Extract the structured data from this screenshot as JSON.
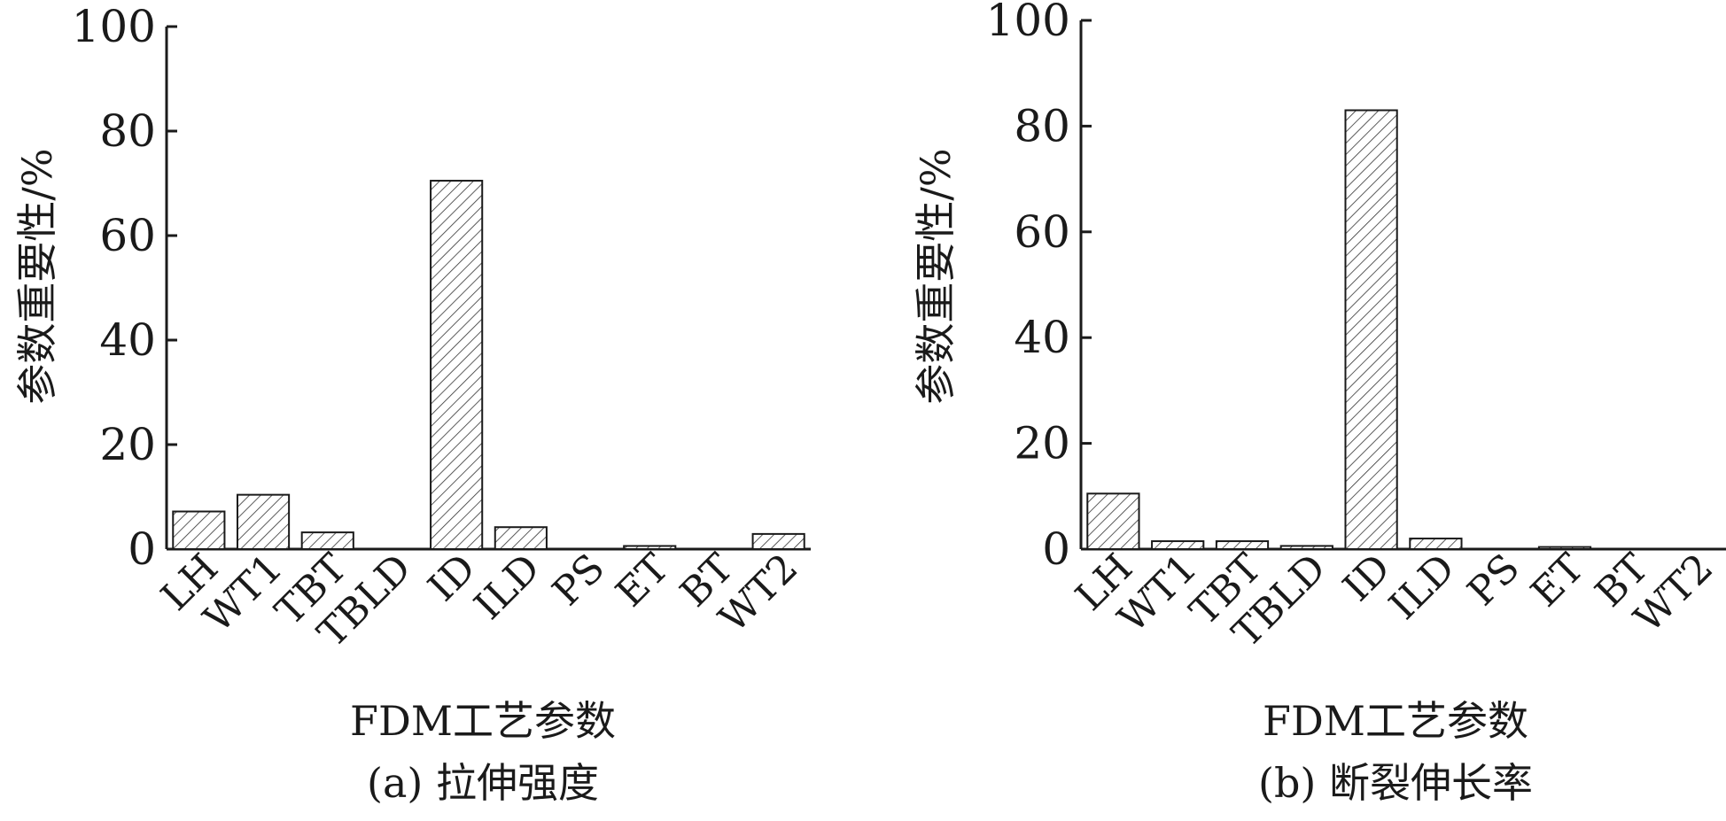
{
  "chart_data": [
    {
      "type": "bar",
      "categories": [
        "LH",
        "WT1",
        "TBT",
        "TBLD",
        "ID",
        "ILD",
        "PS",
        "ET",
        "BT",
        "WT2"
      ],
      "values": [
        7.2,
        10.4,
        3.2,
        0,
        70.5,
        4.2,
        0,
        0.6,
        0,
        2.9
      ],
      "ylabel": "参数重要性/%",
      "xlabel": "FDM工艺参数",
      "caption": "(a) 拉伸强度",
      "ylim": [
        0,
        100
      ],
      "yticks": [
        0,
        20,
        40,
        60,
        80,
        100
      ],
      "fill_pattern": "diagonal-hatch",
      "grid": false,
      "legend": "none"
    },
    {
      "type": "bar",
      "categories": [
        "LH",
        "WT1",
        "TBT",
        "TBLD",
        "ID",
        "ILD",
        "PS",
        "ET",
        "BT",
        "WT2"
      ],
      "values": [
        10.5,
        1.5,
        1.5,
        0.6,
        83.0,
        2.0,
        0,
        0.4,
        0,
        0
      ],
      "ylabel": "参数重要性/%",
      "xlabel": "FDM工艺参数",
      "caption": "(b) 断裂伸长率",
      "ylim": [
        0,
        100
      ],
      "yticks": [
        0,
        20,
        40,
        60,
        80,
        100
      ],
      "fill_pattern": "diagonal-hatch",
      "grid": false,
      "legend": "none"
    }
  ]
}
